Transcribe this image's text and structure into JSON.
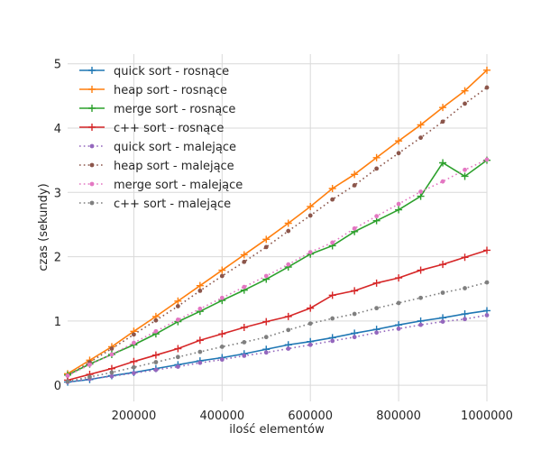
{
  "chart_data": {
    "type": "line",
    "title": "",
    "xlabel": "ilość elementów",
    "ylabel": "czas (sekundy)",
    "xlim": [
      50000,
      1000000
    ],
    "ylim": [
      -0.25,
      5.15
    ],
    "xticks": [
      200000,
      400000,
      600000,
      800000,
      1000000
    ],
    "yticks": [
      0,
      1,
      2,
      3,
      4,
      5
    ],
    "grid": true,
    "legend_position": "top-left",
    "x": [
      50000,
      100000,
      150000,
      200000,
      250000,
      300000,
      350000,
      400000,
      450000,
      500000,
      550000,
      600000,
      650000,
      700000,
      750000,
      800000,
      850000,
      900000,
      950000,
      1000000
    ],
    "series": [
      {
        "name": "quick sort - rosnące",
        "style": "solid",
        "marker": "plus",
        "color": "#1f77b4",
        "values": [
          0.05,
          0.09,
          0.15,
          0.2,
          0.26,
          0.32,
          0.38,
          0.43,
          0.49,
          0.56,
          0.63,
          0.68,
          0.74,
          0.81,
          0.87,
          0.94,
          1.0,
          1.05,
          1.11,
          1.16
        ]
      },
      {
        "name": "heap sort - rosnące",
        "style": "solid",
        "marker": "plus",
        "color": "#ff7f0e",
        "values": [
          0.18,
          0.39,
          0.6,
          0.84,
          1.07,
          1.31,
          1.55,
          1.79,
          2.03,
          2.27,
          2.52,
          2.78,
          3.06,
          3.28,
          3.54,
          3.8,
          4.05,
          4.32,
          4.58,
          4.9
        ]
      },
      {
        "name": "merge sort - rosnące",
        "style": "solid",
        "marker": "plus",
        "color": "#2ca02c",
        "values": [
          0.16,
          0.33,
          0.48,
          0.63,
          0.8,
          0.99,
          1.15,
          1.32,
          1.48,
          1.65,
          1.84,
          2.04,
          2.17,
          2.39,
          2.56,
          2.73,
          2.94,
          3.46,
          3.25,
          3.5
        ]
      },
      {
        "name": "c++ sort - rosnące",
        "style": "solid",
        "marker": "plus",
        "color": "#d62728",
        "values": [
          0.08,
          0.17,
          0.26,
          0.37,
          0.47,
          0.57,
          0.7,
          0.8,
          0.9,
          0.99,
          1.07,
          1.2,
          1.4,
          1.47,
          1.59,
          1.67,
          1.79,
          1.88,
          1.99,
          2.1
        ]
      },
      {
        "name": "quick sort - malejące",
        "style": "dotted",
        "marker": "dot",
        "color": "#9467bd",
        "values": [
          0.05,
          0.1,
          0.14,
          0.19,
          0.24,
          0.29,
          0.35,
          0.4,
          0.46,
          0.51,
          0.57,
          0.63,
          0.69,
          0.75,
          0.82,
          0.88,
          0.94,
          0.99,
          1.03,
          1.09
        ]
      },
      {
        "name": "heap sort - malejące",
        "style": "dotted",
        "marker": "dot",
        "color": "#8c564b",
        "values": [
          0.15,
          0.36,
          0.57,
          0.79,
          1.01,
          1.23,
          1.47,
          1.7,
          1.92,
          2.15,
          2.4,
          2.64,
          2.89,
          3.11,
          3.37,
          3.61,
          3.85,
          4.1,
          4.38,
          4.63
        ]
      },
      {
        "name": "merge sort - malejące",
        "style": "dotted",
        "marker": "dot",
        "color": "#e377c2",
        "values": [
          0.15,
          0.32,
          0.48,
          0.66,
          0.84,
          1.02,
          1.19,
          1.36,
          1.53,
          1.7,
          1.88,
          2.07,
          2.22,
          2.44,
          2.63,
          2.82,
          3.01,
          3.17,
          3.35,
          3.51
        ]
      },
      {
        "name": "c++ sort - malejące",
        "style": "dotted",
        "marker": "dot",
        "color": "#7f7f7f",
        "values": [
          0.06,
          0.13,
          0.2,
          0.28,
          0.36,
          0.44,
          0.52,
          0.6,
          0.67,
          0.75,
          0.86,
          0.96,
          1.04,
          1.11,
          1.2,
          1.28,
          1.36,
          1.44,
          1.51,
          1.6
        ]
      }
    ]
  }
}
